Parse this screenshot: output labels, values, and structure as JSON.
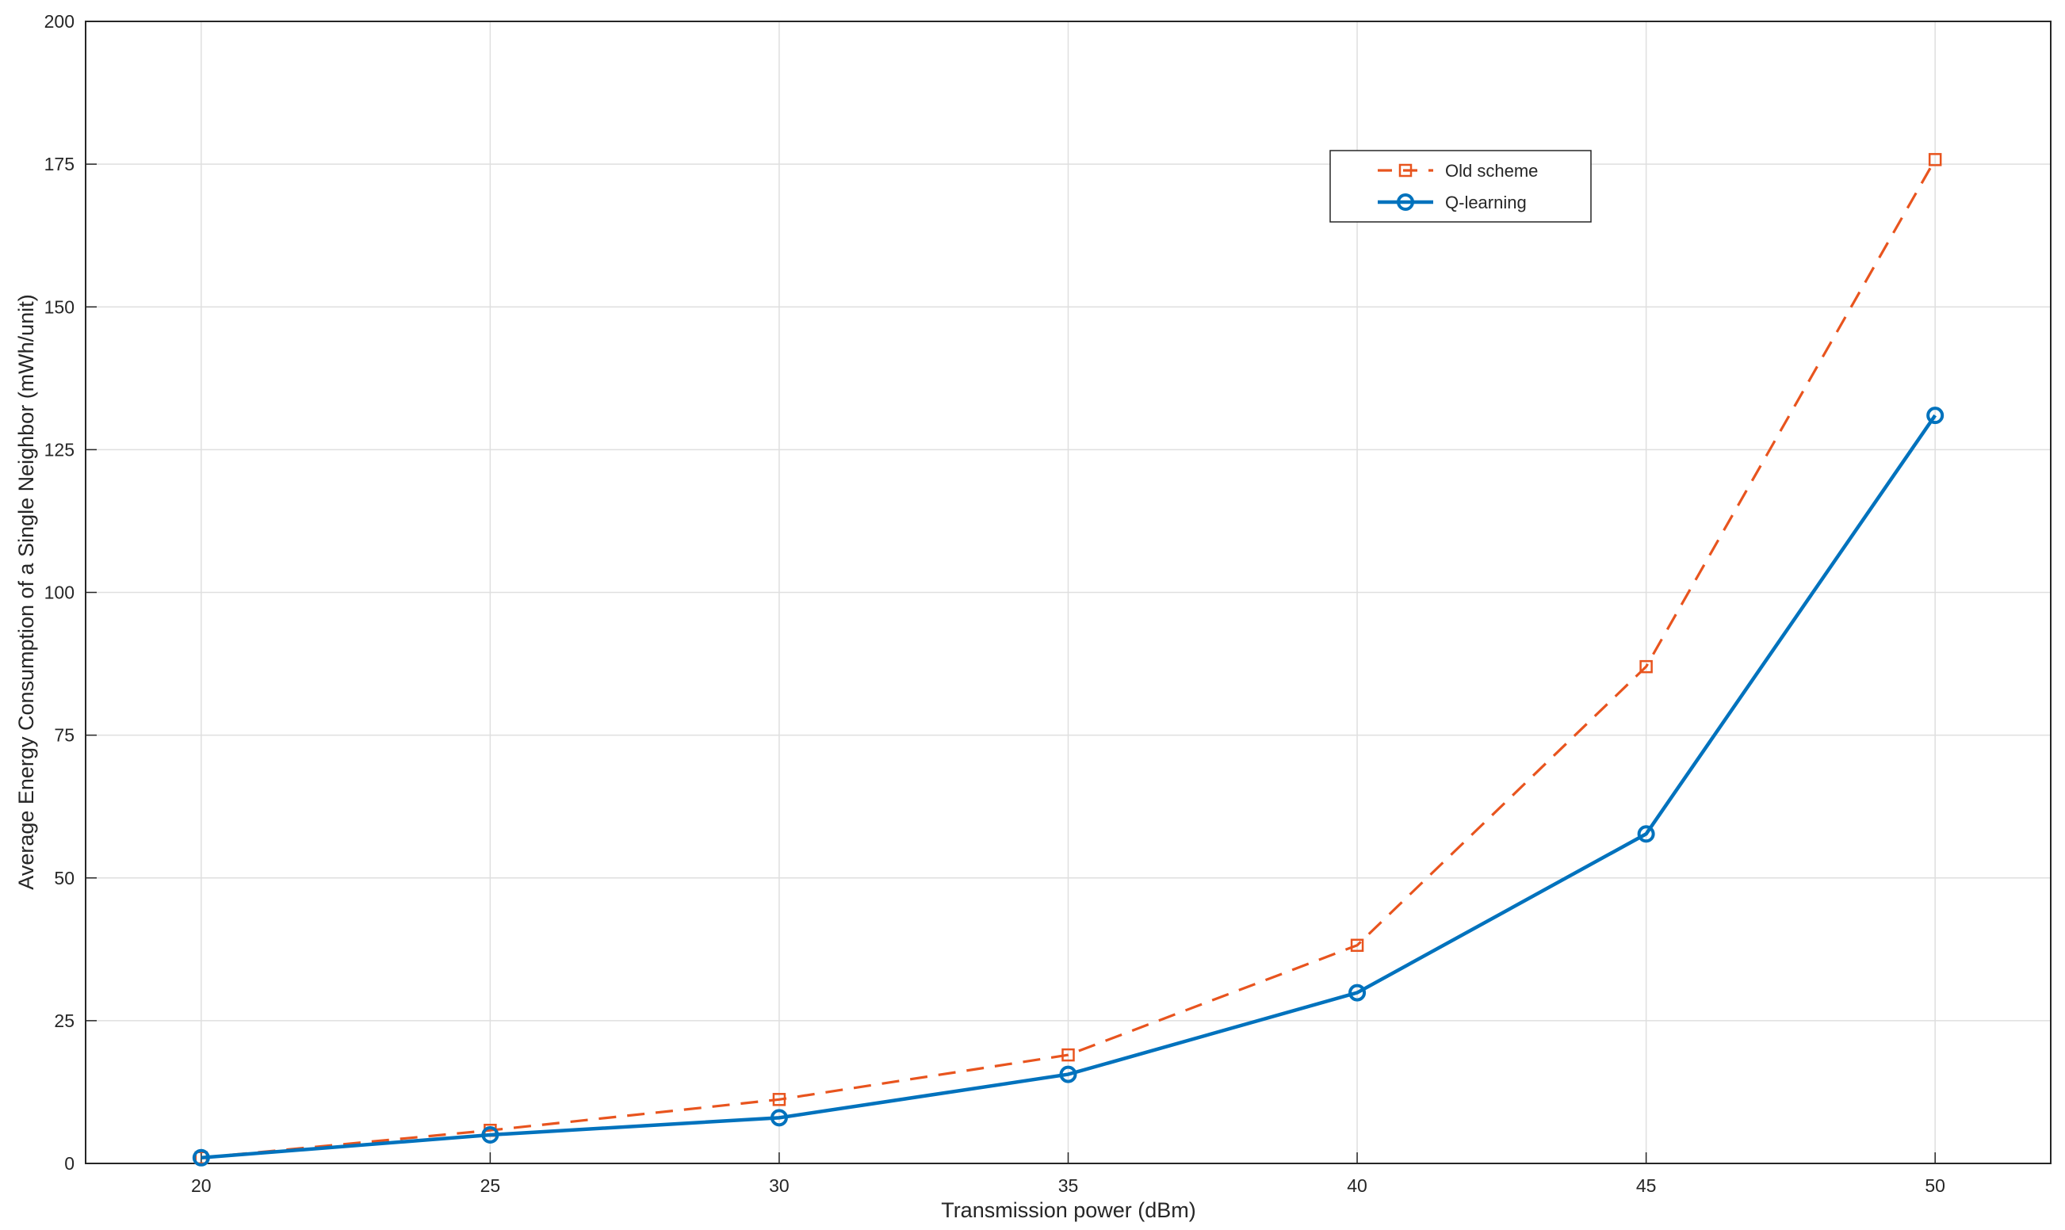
{
  "chart_data": {
    "type": "line",
    "xlabel": "Transmission power (dBm)",
    "ylabel": "Average Energy Consumption of a Single Neighbor (mWh/unit)",
    "x": [
      20,
      25,
      30,
      35,
      40,
      45,
      50
    ],
    "series": [
      {
        "name": "Old scheme",
        "color": "#e8541e",
        "linestyle": "dashed",
        "marker": "square",
        "values": [
          1,
          5.8,
          11.2,
          19,
          38.2,
          87,
          175.8
        ]
      },
      {
        "name": "Q-learning",
        "color": "#0072bd",
        "linestyle": "solid",
        "marker": "circle",
        "values": [
          1,
          5,
          8,
          15.6,
          29.9,
          57.7,
          131
        ]
      }
    ],
    "xlim": [
      18,
      52
    ],
    "xticks": [
      20,
      25,
      30,
      35,
      40,
      45,
      50
    ],
    "ylim": [
      0,
      200
    ],
    "yticks": [
      0,
      25,
      50,
      75,
      100,
      125,
      150,
      175,
      200
    ],
    "grid": true
  }
}
